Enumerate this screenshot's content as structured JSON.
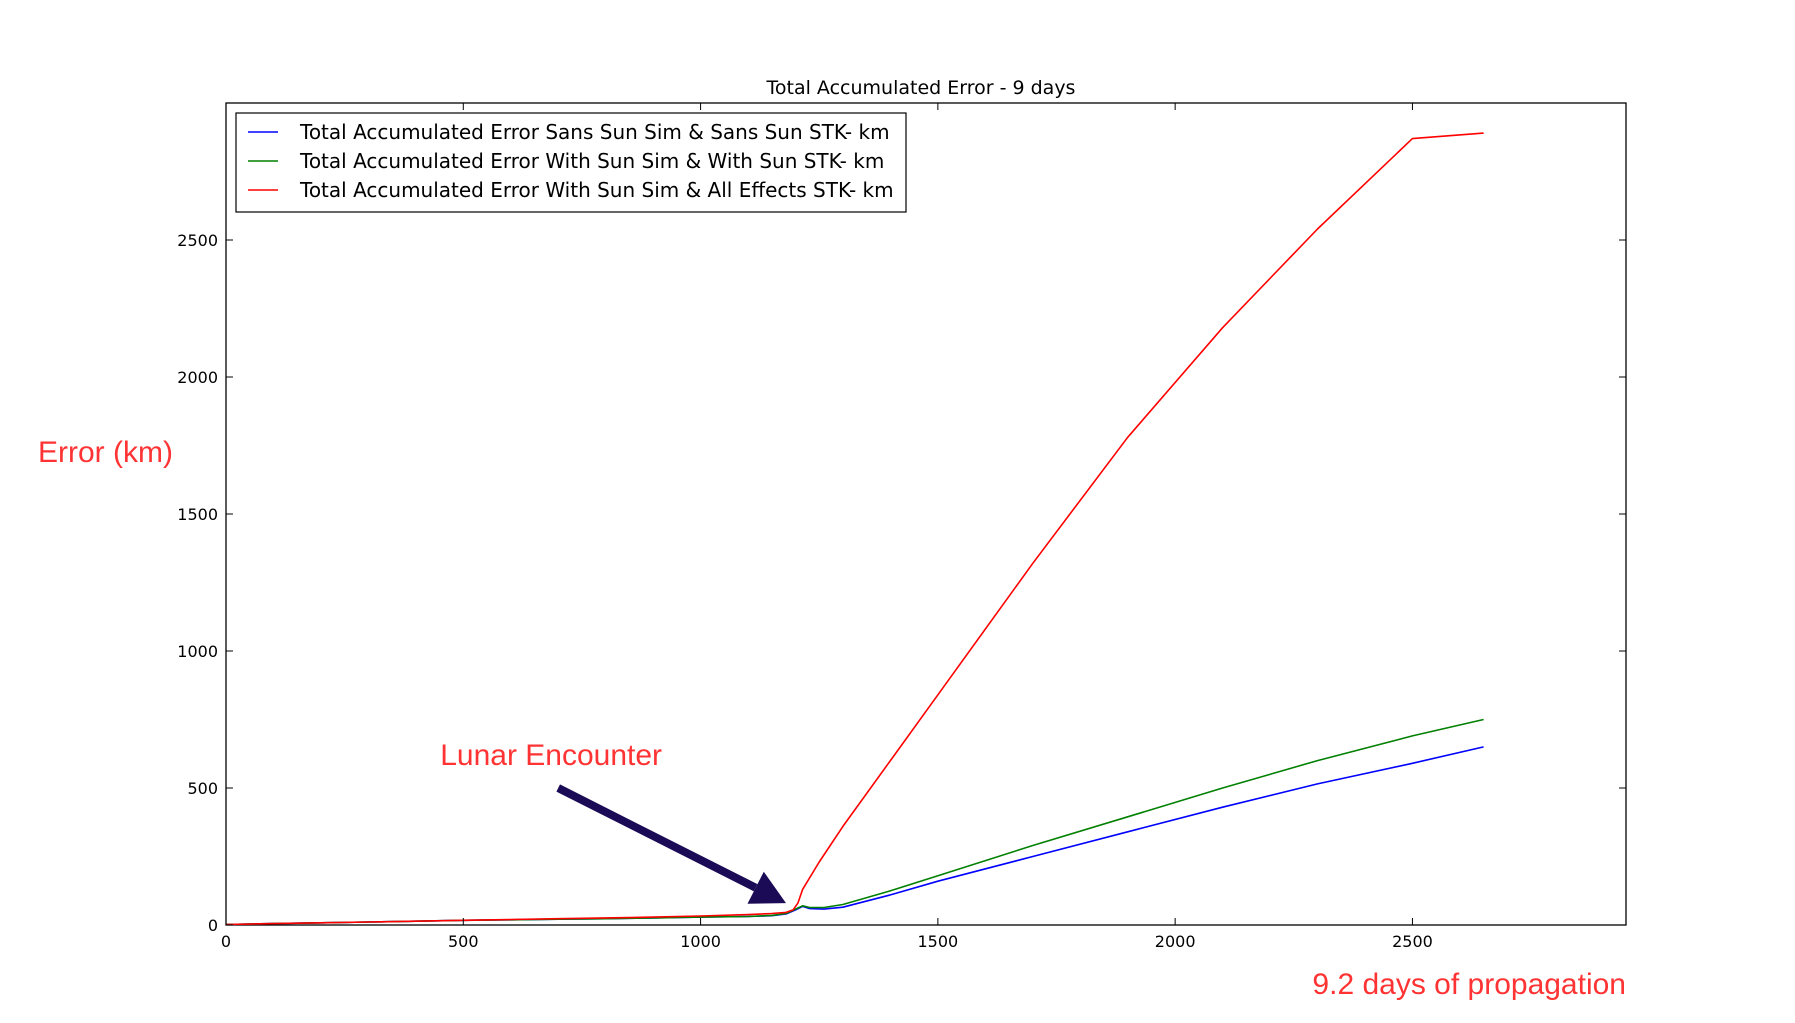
{
  "chart_data": {
    "type": "line",
    "title": "Total Accumulated Error - 9 days",
    "xlabel": "9.2 days of propagation",
    "ylabel": "Error (km)",
    "xlim": [
      0,
      2950
    ],
    "ylim": [
      0,
      3000
    ],
    "xticks": [
      0,
      500,
      1000,
      1500,
      2000,
      2500
    ],
    "xtick_labels": [
      "0",
      "500",
      "1000",
      "1500",
      "2000",
      "2500"
    ],
    "yticks": [
      0,
      500,
      1000,
      1500,
      2000,
      2500
    ],
    "ytick_labels": [
      "0",
      "500",
      "1000",
      "1500",
      "2000",
      "2500"
    ],
    "legend_position": "top-left",
    "grid": false,
    "series": [
      {
        "name": "Total Accumulated Error Sans Sun Sim & Sans Sun STK- km",
        "color": "#0000ff",
        "x": [
          0,
          100,
          200,
          300,
          400,
          500,
          600,
          700,
          800,
          900,
          1000,
          1100,
          1150,
          1180,
          1200,
          1215,
          1230,
          1260,
          1300,
          1400,
          1500,
          1700,
          1900,
          2100,
          2300,
          2500,
          2650
        ],
        "y": [
          2,
          5,
          8,
          11,
          14,
          17,
          19,
          21,
          23,
          26,
          29,
          31,
          34,
          40,
          55,
          68,
          60,
          58,
          65,
          110,
          160,
          250,
          340,
          430,
          515,
          590,
          650
        ]
      },
      {
        "name": "Total Accumulated Error With Sun Sim & With Sun STK- km",
        "color": "#008000",
        "x": [
          0,
          100,
          200,
          300,
          400,
          500,
          600,
          700,
          800,
          900,
          1000,
          1100,
          1150,
          1180,
          1200,
          1215,
          1230,
          1260,
          1300,
          1400,
          1500,
          1700,
          1900,
          2100,
          2300,
          2500,
          2650
        ],
        "y": [
          2,
          5,
          8,
          11,
          14,
          17,
          19,
          21,
          23,
          26,
          29,
          31,
          35,
          42,
          58,
          70,
          64,
          64,
          75,
          125,
          180,
          290,
          395,
          500,
          600,
          690,
          750
        ]
      },
      {
        "name": "Total Accumulated Error With Sun Sim & All Effects STK- km",
        "color": "#ff0000",
        "x": [
          0,
          100,
          200,
          300,
          400,
          500,
          600,
          700,
          800,
          900,
          1000,
          1100,
          1150,
          1180,
          1195,
          1205,
          1215,
          1250,
          1300,
          1400,
          1500,
          1700,
          1900,
          2100,
          2300,
          2500,
          2650
        ],
        "y": [
          2,
          5,
          8,
          11,
          14,
          17,
          20,
          23,
          26,
          29,
          33,
          38,
          42,
          46,
          55,
          80,
          130,
          230,
          360,
          600,
          840,
          1320,
          1780,
          2180,
          2540,
          2870,
          2890
        ]
      }
    ],
    "annotations": [
      {
        "text": "Lunar Encounter",
        "color": "#ff3333",
        "arrow_from": [
          700,
          500
        ],
        "arrow_to": [
          1180,
          80
        ]
      }
    ]
  }
}
